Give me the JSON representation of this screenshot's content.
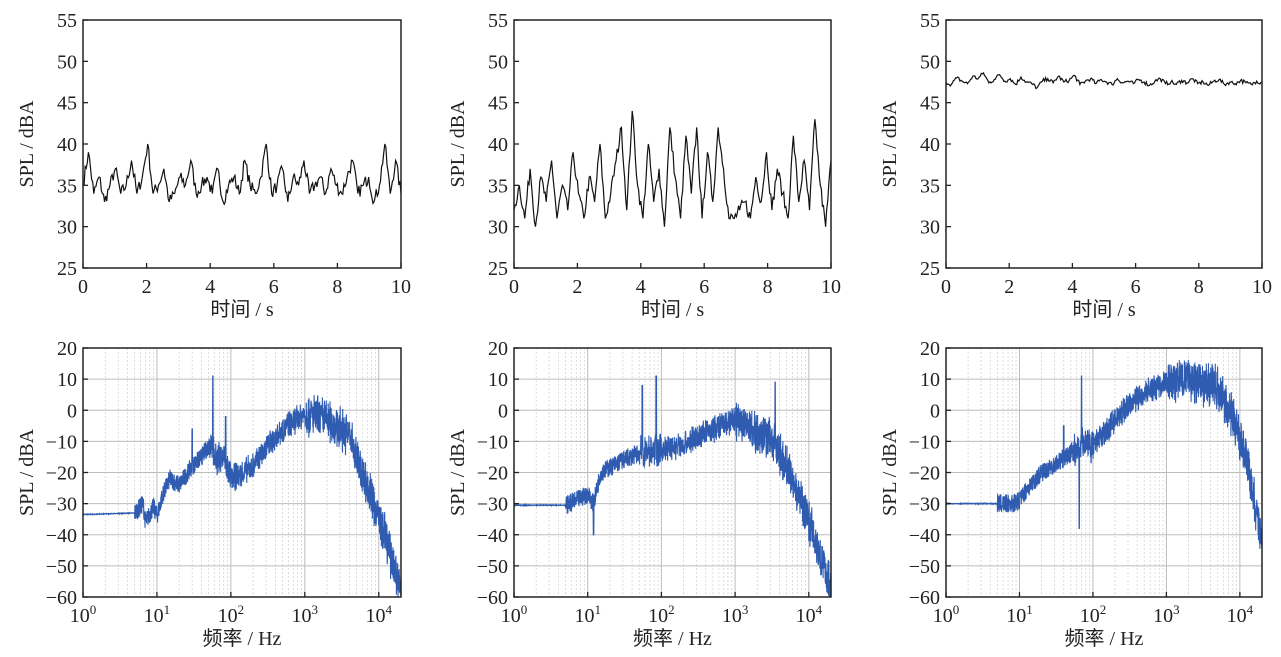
{
  "colors": {
    "time_line": "#111111",
    "spectrum_line": "#2f5cb0",
    "grid": "#c8c8c8"
  },
  "chart_data": [
    {
      "type": "line",
      "panel": "top-left",
      "xlabel": "时间 / s",
      "ylabel": "SPL / dBA",
      "xlim": [
        0,
        10
      ],
      "ylim": [
        25,
        55
      ],
      "xticks": [
        "0",
        "2",
        "4",
        "6",
        "8",
        "10"
      ],
      "yticks": [
        "25",
        "30",
        "35",
        "40",
        "45",
        "50",
        "55"
      ],
      "grid": false,
      "series": [
        {
          "name": "time",
          "values": [
            35,
            39,
            34,
            36,
            33,
            35,
            37,
            34,
            35,
            38,
            34,
            36,
            40,
            34,
            35,
            37,
            33,
            34,
            36,
            35,
            38,
            34,
            35,
            36,
            34,
            37,
            33,
            35,
            36,
            34,
            38,
            35,
            34,
            36,
            40,
            34,
            35,
            37,
            33,
            36,
            35,
            38,
            34,
            35,
            36,
            34,
            37,
            35,
            34,
            36,
            38,
            34,
            35,
            36,
            33,
            35,
            40,
            34,
            38,
            34
          ]
        }
      ]
    },
    {
      "type": "line",
      "panel": "top-middle",
      "xlabel": "时间 / s",
      "ylabel": "SPL / dBA",
      "xlim": [
        0,
        10
      ],
      "ylim": [
        25,
        55
      ],
      "xticks": [
        "0",
        "2",
        "4",
        "6",
        "8",
        "10"
      ],
      "yticks": [
        "25",
        "30",
        "35",
        "40",
        "45",
        "50",
        "55"
      ],
      "grid": false,
      "series": [
        {
          "name": "time",
          "values": [
            32,
            35,
            31,
            37,
            30,
            36,
            33,
            38,
            31,
            35,
            32,
            39,
            34,
            31,
            36,
            33,
            40,
            31,
            34,
            38,
            42,
            32,
            44,
            35,
            31,
            40,
            33,
            37,
            30,
            42,
            36,
            31,
            41,
            34,
            42,
            31,
            39,
            33,
            42,
            37,
            31,
            31,
            32,
            33,
            31,
            36,
            33,
            39,
            32,
            37,
            34,
            31,
            41,
            33,
            38,
            32,
            43,
            35,
            30,
            38
          ]
        }
      ]
    },
    {
      "type": "line",
      "panel": "top-right",
      "xlabel": "时间 / s",
      "ylabel": "SPL / dBA",
      "xlim": [
        0,
        10
      ],
      "ylim": [
        25,
        55
      ],
      "xticks": [
        "0",
        "2",
        "4",
        "6",
        "8",
        "10"
      ],
      "yticks": [
        "25",
        "30",
        "35",
        "40",
        "45",
        "50",
        "55"
      ],
      "grid": false,
      "series": [
        {
          "name": "time",
          "values": [
            47.5,
            47.2,
            48,
            47.6,
            47.3,
            48.2,
            47.9,
            48.6,
            47.4,
            47.8,
            48.4,
            47.6,
            47.9,
            47.2,
            48.1,
            47.5,
            47.3,
            46.8,
            47.6,
            47.9,
            47.4,
            48.2,
            47.5,
            47.7,
            48.3,
            47.2,
            47.6,
            47.9,
            47.3,
            47.8,
            47.5,
            47.2,
            47.9,
            47.4,
            47.6,
            47.3,
            47.8,
            47.5,
            47.1,
            47.6,
            47.9,
            47.3,
            47.5,
            47.2,
            47.7,
            47.4,
            47.9,
            47.3,
            47.5,
            47.1,
            47.6,
            47.8,
            47.2,
            47.5,
            47.3,
            47.7,
            47.4,
            47.2,
            47.6,
            47.4
          ]
        }
      ]
    },
    {
      "type": "line",
      "panel": "bottom-left",
      "xscale": "log",
      "xlabel": "频率 / Hz",
      "ylabel": "SPL / dBA",
      "xlim": [
        1,
        20000
      ],
      "ylim": [
        -60,
        20
      ],
      "xticks": [
        "10^0",
        "10^1",
        "10^2",
        "10^3",
        "10^4"
      ],
      "yticks": [
        "-60",
        "-50",
        "-40",
        "-30",
        "-20",
        "-10",
        "0",
        "10",
        "20"
      ],
      "grid": true,
      "envelope": [
        [
          1,
          -33.5
        ],
        [
          5,
          -33
        ],
        [
          6.5,
          -30
        ],
        [
          7,
          -36
        ],
        [
          9,
          -31
        ],
        [
          10,
          -34
        ],
        [
          12,
          -27
        ],
        [
          15,
          -22
        ],
        [
          20,
          -24
        ],
        [
          30,
          -18
        ],
        [
          40,
          -15
        ],
        [
          55,
          -10
        ],
        [
          60,
          -16
        ],
        [
          80,
          -15
        ],
        [
          100,
          -22
        ],
        [
          150,
          -20
        ],
        [
          200,
          -18
        ],
        [
          300,
          -12
        ],
        [
          500,
          -6
        ],
        [
          1000,
          -1
        ],
        [
          2000,
          -3
        ],
        [
          4000,
          -8
        ],
        [
          5000,
          -15
        ],
        [
          8000,
          -28
        ],
        [
          12000,
          -40
        ],
        [
          20000,
          -58
        ]
      ],
      "peaks": [
        [
          30,
          -6
        ],
        [
          57,
          11
        ],
        [
          85,
          -2
        ],
        [
          4000,
          -4
        ]
      ]
    },
    {
      "type": "line",
      "panel": "bottom-middle",
      "xscale": "log",
      "xlabel": "频率 / Hz",
      "ylabel": "SPL / dBA",
      "xlim": [
        1,
        20000
      ],
      "ylim": [
        -60,
        20
      ],
      "xticks": [
        "10^0",
        "10^1",
        "10^2",
        "10^3",
        "10^4"
      ],
      "yticks": [
        "-60",
        "-50",
        "-40",
        "-30",
        "-20",
        "-10",
        "0",
        "10",
        "20"
      ],
      "grid": true,
      "envelope": [
        [
          1,
          -30.5
        ],
        [
          5,
          -30.5
        ],
        [
          7,
          -29
        ],
        [
          10,
          -27
        ],
        [
          12,
          -30
        ],
        [
          15,
          -20
        ],
        [
          30,
          -16
        ],
        [
          60,
          -13
        ],
        [
          100,
          -13
        ],
        [
          200,
          -11
        ],
        [
          500,
          -6
        ],
        [
          1000,
          -3
        ],
        [
          2000,
          -7
        ],
        [
          3000,
          -9
        ],
        [
          5000,
          -18
        ],
        [
          10000,
          -35
        ],
        [
          20000,
          -57
        ]
      ],
      "peaks": [
        [
          55,
          8
        ],
        [
          85,
          11
        ],
        [
          3500,
          9
        ],
        [
          12,
          -40
        ]
      ]
    },
    {
      "type": "line",
      "panel": "bottom-right",
      "xscale": "log",
      "xlabel": "频率 / Hz",
      "ylabel": "SPL / dBA",
      "xlim": [
        1,
        20000
      ],
      "ylim": [
        -60,
        20
      ],
      "xticks": [
        "10^0",
        "10^1",
        "10^2",
        "10^3",
        "10^4"
      ],
      "yticks": [
        "-60",
        "-50",
        "-40",
        "-30",
        "-20",
        "-10",
        "0",
        "10",
        "20"
      ],
      "grid": true,
      "envelope": [
        [
          1,
          -30
        ],
        [
          8,
          -30
        ],
        [
          10,
          -29
        ],
        [
          12,
          -26
        ],
        [
          20,
          -20
        ],
        [
          50,
          -14
        ],
        [
          80,
          -10
        ],
        [
          100,
          -12
        ],
        [
          200,
          -3
        ],
        [
          500,
          6
        ],
        [
          1000,
          9
        ],
        [
          2000,
          10
        ],
        [
          5000,
          7
        ],
        [
          8000,
          -2
        ],
        [
          12000,
          -15
        ],
        [
          20000,
          -42
        ]
      ],
      "peaks": [
        [
          40,
          -5
        ],
        [
          70,
          11
        ],
        [
          65,
          -38
        ]
      ]
    }
  ]
}
